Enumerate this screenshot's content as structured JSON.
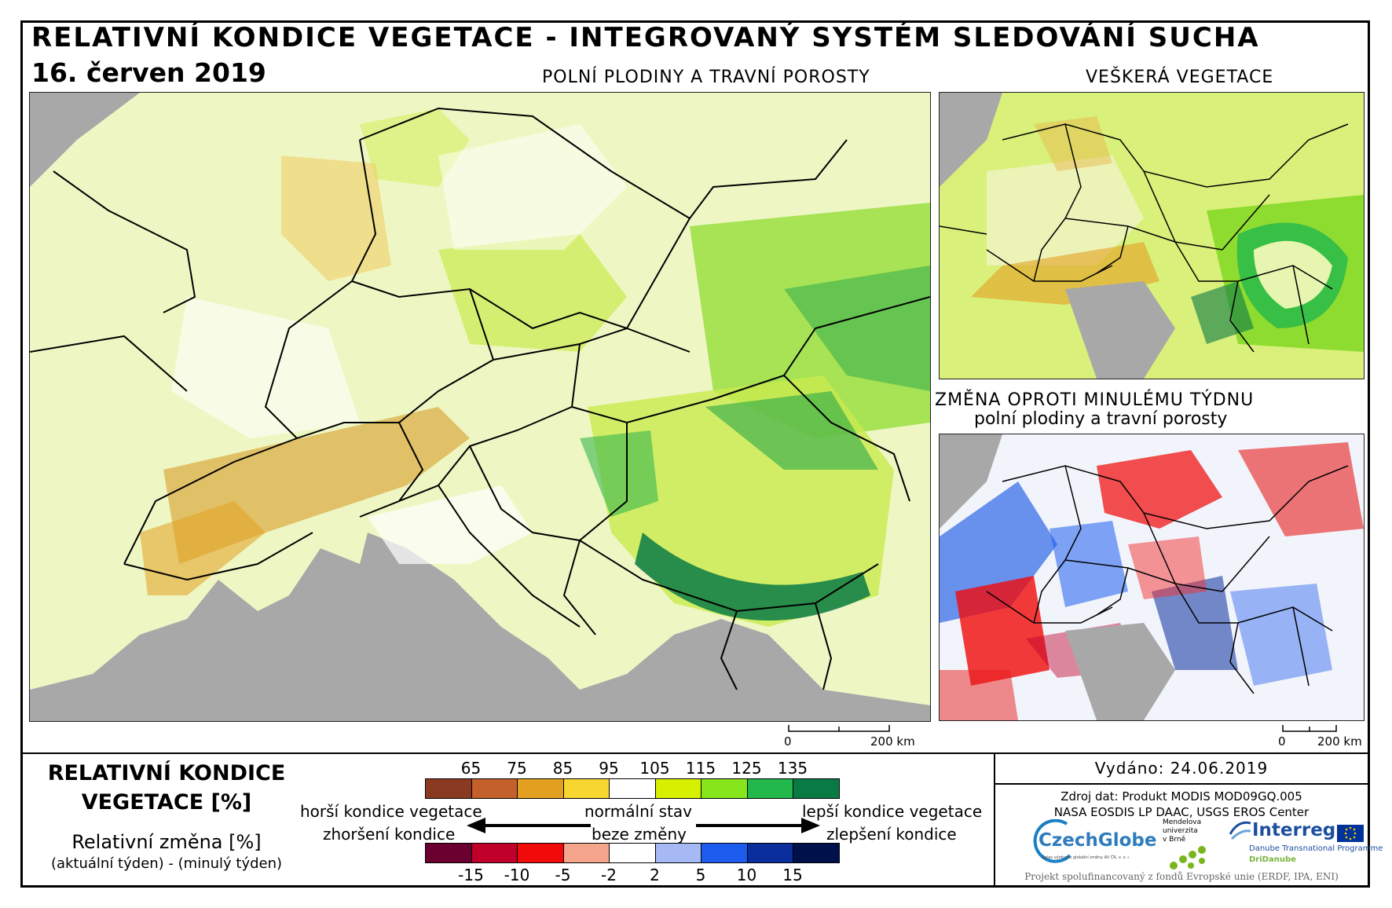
{
  "header": {
    "title": "RELATIVNÍ KONDICE VEGETACE - INTEGROVANÝ SYSTÉM SLEDOVÁNÍ SUCHA",
    "date": "16. červen 2019"
  },
  "panels": {
    "main_label": "POLNÍ PLODINY A TRAVNÍ POROSTY",
    "veg_label": "VEŠKERÁ VEGETACE",
    "change_label_1": "ZMĚNA OPROTI MINULÉMU TÝDNU",
    "change_label_2": "polní plodiny a travní porosty"
  },
  "scalebar": {
    "zero": "0",
    "main_dist": "200 km",
    "small_dist": "200 km"
  },
  "legend": {
    "title_line1": "RELATIVNÍ KONDICE",
    "title_line2": "VEGETACE [%]",
    "change_title": "Relativní změna [%]",
    "change_formula": "(aktuální týden) - (minulý týden)",
    "condition_ticks": [
      "65",
      "75",
      "85",
      "95",
      "105",
      "115",
      "125",
      "135"
    ],
    "condition_colors": [
      "#8b3a22",
      "#c4602a",
      "#e3a020",
      "#f7d630",
      "#ffffff",
      "#d7f000",
      "#86e51b",
      "#22b84c",
      "#0a7a45"
    ],
    "change_ticks": [
      "-15",
      "-10",
      "-5",
      "-2",
      "2",
      "5",
      "10",
      "15"
    ],
    "change_colors": [
      "#6b0030",
      "#c0002a",
      "#f00a0a",
      "#f5a58c",
      "#ffffff",
      "#a6b9f5",
      "#1e5cf0",
      "#0a2e9c",
      "#00104a"
    ],
    "worse": "horší kondice vegetace",
    "normal": "normální stav",
    "better": "lepší kondice vegetace",
    "worsened": "zhoršení kondice",
    "unchanged": "beze změny",
    "improved": "zlepšení kondice"
  },
  "info": {
    "issued": "Vydáno: 24.06.2019",
    "source_line1": "Zdroj dat: Produkt MODIS MOD09GQ.005",
    "source_line2": "NASA EOSDIS LP DAAC, USGS EROS Center",
    "czechglobe": "CzechGlobe",
    "czechglobe_sub": "Ústav výzkumu globální změny AV ČR, v. v. i.",
    "mendel_line1": "Mendelova",
    "mendel_line2": "univerzita",
    "mendel_line3": "v Brně",
    "interreg": "Interreg",
    "interreg_sub": "Danube Transnational Programme",
    "dridanube": "DriDanube",
    "funding": "Projekt spolufinancovaný z fondů Evropské unie (ERDF, IPA, ENI)"
  }
}
